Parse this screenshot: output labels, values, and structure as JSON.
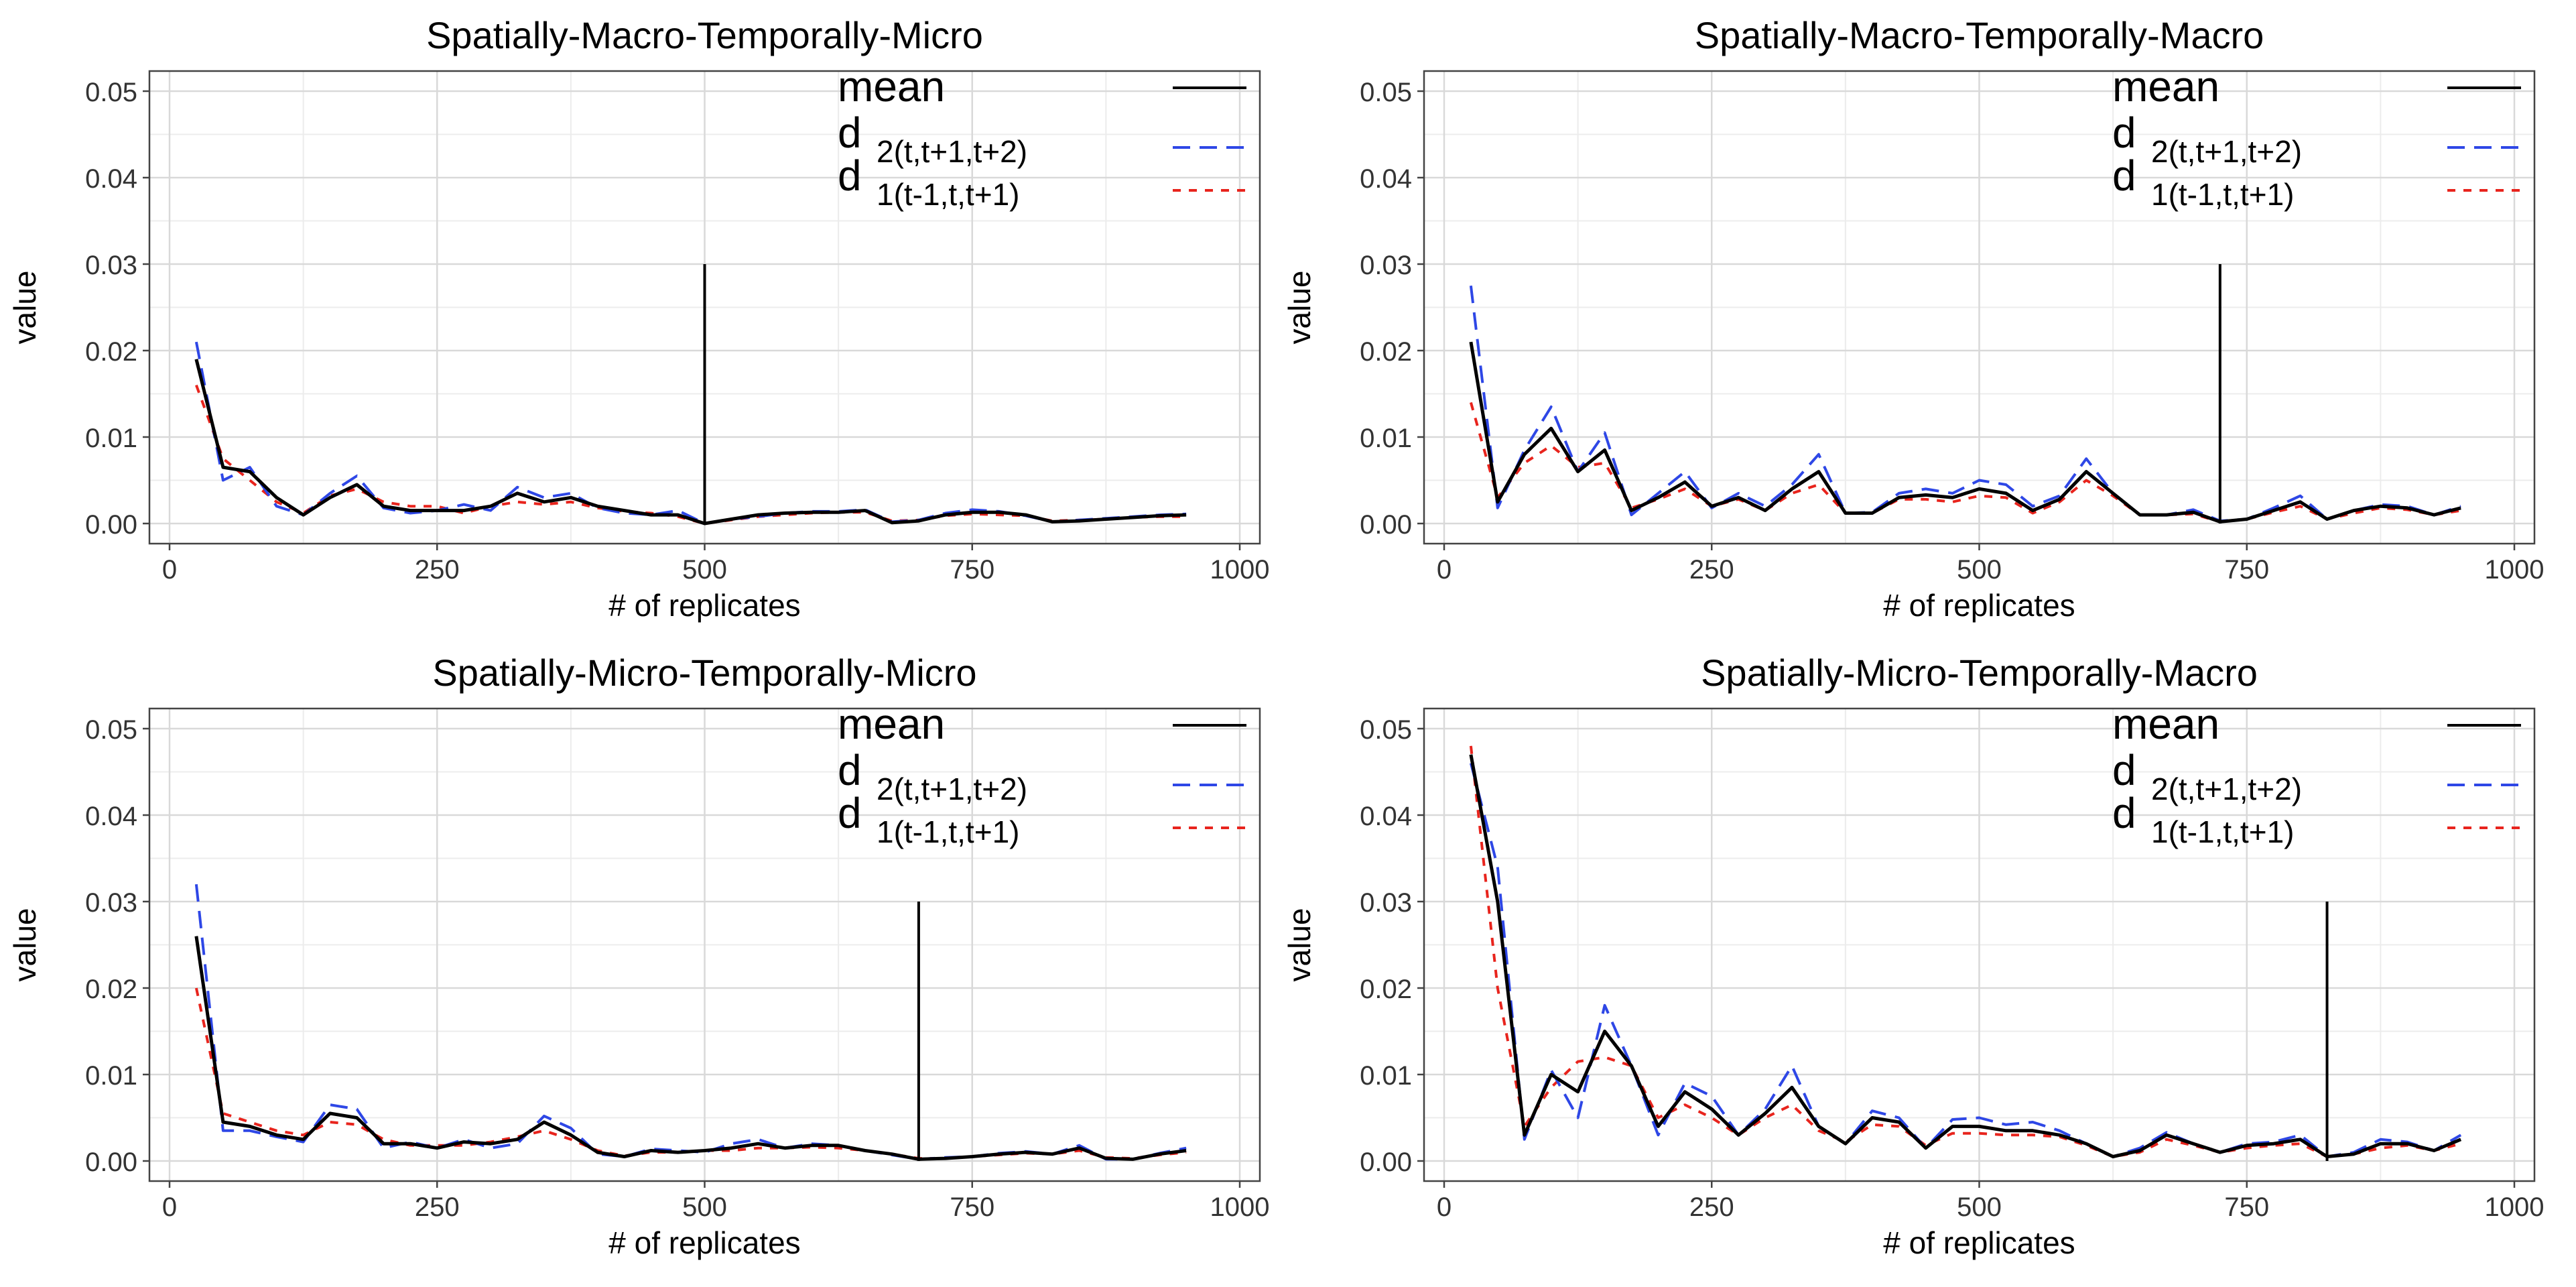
{
  "chart_data": [
    {
      "type": "line",
      "title": "Spatially-Macro-Temporally-Micro",
      "xlabel": "# of replicates",
      "ylabel": "value",
      "xlim": [
        0,
        1000
      ],
      "ylim": [
        0,
        0.05
      ],
      "xticks": [
        0,
        250,
        500,
        750,
        1000
      ],
      "xtick_labels": [
        "0",
        "250",
        "500",
        "750",
        "1000"
      ],
      "yticks": [
        0,
        0.01,
        0.02,
        0.03,
        0.04,
        0.05
      ],
      "ytick_labels": [
        "0.00",
        "0.01",
        "0.02",
        "0.03",
        "0.04",
        "0.05"
      ],
      "grid": true,
      "legend_position": "top-right",
      "x": [
        25,
        50,
        75,
        100,
        125,
        150,
        175,
        200,
        225,
        250,
        275,
        300,
        325,
        350,
        375,
        400,
        425,
        450,
        475,
        500,
        525,
        550,
        575,
        600,
        625,
        650,
        675,
        700,
        725,
        750,
        775,
        800,
        825,
        850,
        875,
        900,
        925,
        950
      ],
      "series": [
        {
          "name": "mean",
          "style": "solid",
          "color": "#000000",
          "values": [
            0.019,
            0.0065,
            0.006,
            0.003,
            0.001,
            0.003,
            0.0045,
            0.002,
            0.0015,
            0.0015,
            0.0015,
            0.002,
            0.0035,
            0.0025,
            0.003,
            0.002,
            0.0015,
            0.001,
            0.001,
            0.0,
            0.0005,
            0.001,
            0.0012,
            0.0013,
            0.0013,
            0.0015,
            0.0001,
            0.0003,
            0.001,
            0.0013,
            0.0013,
            0.001,
            0.0002,
            0.0003,
            0.0005,
            0.0007,
            0.0009,
            0.001
          ]
        },
        {
          "name": "d 2(t,t+1,t+2)",
          "style": "longdash",
          "color": "#2e47e6",
          "values": [
            0.021,
            0.005,
            0.0065,
            0.002,
            0.001,
            0.0035,
            0.0055,
            0.0018,
            0.0012,
            0.0015,
            0.0022,
            0.0015,
            0.0042,
            0.003,
            0.0035,
            0.0018,
            0.0012,
            0.001,
            0.0015,
            0.0,
            0.0005,
            0.0008,
            0.0012,
            0.0014,
            0.0014,
            0.0016,
            0.0002,
            0.0004,
            0.0012,
            0.0016,
            0.0014,
            0.0009,
            0.0002,
            0.0004,
            0.0006,
            0.0008,
            0.001,
            0.0011
          ]
        },
        {
          "name": "d 1(t-1,t,t+1)",
          "style": "dashed",
          "color": "#e8241d",
          "values": [
            0.016,
            0.0075,
            0.005,
            0.0025,
            0.0012,
            0.0032,
            0.004,
            0.0025,
            0.002,
            0.002,
            0.0012,
            0.002,
            0.0025,
            0.0022,
            0.0025,
            0.0018,
            0.0014,
            0.0012,
            0.0008,
            0.0,
            0.0004,
            0.0008,
            0.001,
            0.0012,
            0.0013,
            0.0013,
            0.0003,
            0.0004,
            0.0009,
            0.0011,
            0.001,
            0.0009,
            0.0003,
            0.0004,
            0.0005,
            0.0007,
            0.0008,
            0.0008
          ]
        }
      ],
      "annotations": [
        {
          "type": "vline",
          "x": 500,
          "y_from": 0,
          "y_to": 0.03
        }
      ],
      "legend_entries": [
        {
          "label": "mean",
          "subscript": ""
        },
        {
          "label": "d",
          "subscript": "2(t,t+1,t+2)"
        },
        {
          "label": "d",
          "subscript": "1(t-1,t,t+1)"
        }
      ]
    },
    {
      "type": "line",
      "title": "Spatially-Macro-Temporally-Macro",
      "xlabel": "# of replicates",
      "ylabel": "value",
      "xlim": [
        0,
        1000
      ],
      "ylim": [
        0,
        0.05
      ],
      "xticks": [
        0,
        250,
        500,
        750,
        1000
      ],
      "xtick_labels": [
        "0",
        "250",
        "500",
        "750",
        "1000"
      ],
      "yticks": [
        0,
        0.01,
        0.02,
        0.03,
        0.04,
        0.05
      ],
      "ytick_labels": [
        "0.00",
        "0.01",
        "0.02",
        "0.03",
        "0.04",
        "0.05"
      ],
      "grid": true,
      "legend_position": "top-right",
      "x": [
        25,
        50,
        75,
        100,
        125,
        150,
        175,
        200,
        225,
        250,
        275,
        300,
        325,
        350,
        375,
        400,
        425,
        450,
        475,
        500,
        525,
        550,
        575,
        600,
        625,
        650,
        675,
        700,
        725,
        750,
        775,
        800,
        825,
        850,
        875,
        900,
        925,
        950
      ],
      "series": [
        {
          "name": "mean",
          "style": "solid",
          "color": "#000000",
          "values": [
            0.021,
            0.0025,
            0.008,
            0.011,
            0.006,
            0.0085,
            0.0015,
            0.003,
            0.0048,
            0.002,
            0.003,
            0.0015,
            0.004,
            0.006,
            0.0012,
            0.0012,
            0.003,
            0.0033,
            0.003,
            0.004,
            0.0035,
            0.0015,
            0.0028,
            0.006,
            0.0035,
            0.001,
            0.001,
            0.0013,
            0.0002,
            0.0005,
            0.0015,
            0.0025,
            0.0005,
            0.0015,
            0.002,
            0.0018,
            0.001,
            0.0018
          ]
        },
        {
          "name": "d 2(t,t+1,t+2)",
          "style": "longdash",
          "color": "#2e47e6",
          "values": [
            0.0275,
            0.0018,
            0.0085,
            0.0135,
            0.006,
            0.0105,
            0.001,
            0.0035,
            0.006,
            0.0018,
            0.0035,
            0.002,
            0.0045,
            0.008,
            0.0012,
            0.0013,
            0.0035,
            0.004,
            0.0035,
            0.005,
            0.0045,
            0.002,
            0.0032,
            0.0075,
            0.0035,
            0.001,
            0.001,
            0.0016,
            0.0003,
            0.0005,
            0.0018,
            0.0032,
            0.0005,
            0.0015,
            0.0022,
            0.002,
            0.001,
            0.002
          ]
        },
        {
          "name": "d 1(t-1,t,t+1)",
          "style": "dashed",
          "color": "#e8241d",
          "values": [
            0.014,
            0.003,
            0.007,
            0.009,
            0.0065,
            0.007,
            0.0018,
            0.0028,
            0.004,
            0.002,
            0.0028,
            0.0015,
            0.0035,
            0.0045,
            0.0012,
            0.0012,
            0.0028,
            0.0028,
            0.0025,
            0.0032,
            0.003,
            0.0012,
            0.0025,
            0.005,
            0.0032,
            0.001,
            0.001,
            0.0011,
            0.0002,
            0.0005,
            0.0013,
            0.002,
            0.0005,
            0.0012,
            0.0018,
            0.0016,
            0.001,
            0.0015
          ]
        }
      ],
      "annotations": [
        {
          "type": "vline",
          "x": 725,
          "y_from": 0,
          "y_to": 0.03
        }
      ],
      "legend_entries": [
        {
          "label": "mean",
          "subscript": ""
        },
        {
          "label": "d",
          "subscript": "2(t,t+1,t+2)"
        },
        {
          "label": "d",
          "subscript": "1(t-1,t,t+1)"
        }
      ]
    },
    {
      "type": "line",
      "title": "Spatially-Micro-Temporally-Micro",
      "xlabel": "# of replicates",
      "ylabel": "value",
      "xlim": [
        0,
        1000
      ],
      "ylim": [
        0,
        0.05
      ],
      "xticks": [
        0,
        250,
        500,
        750,
        1000
      ],
      "xtick_labels": [
        "0",
        "250",
        "500",
        "750",
        "1000"
      ],
      "yticks": [
        0,
        0.01,
        0.02,
        0.03,
        0.04,
        0.05
      ],
      "ytick_labels": [
        "0.00",
        "0.01",
        "0.02",
        "0.03",
        "0.04",
        "0.05"
      ],
      "grid": true,
      "legend_position": "top-right",
      "x": [
        25,
        50,
        75,
        100,
        125,
        150,
        175,
        200,
        225,
        250,
        275,
        300,
        325,
        350,
        375,
        400,
        425,
        450,
        475,
        500,
        525,
        550,
        575,
        600,
        625,
        650,
        675,
        700,
        725,
        750,
        775,
        800,
        825,
        850,
        875,
        900,
        925,
        950
      ],
      "series": [
        {
          "name": "mean",
          "style": "solid",
          "color": "#000000",
          "values": [
            0.026,
            0.0045,
            0.004,
            0.003,
            0.0025,
            0.0055,
            0.005,
            0.002,
            0.002,
            0.0015,
            0.0022,
            0.002,
            0.0025,
            0.0045,
            0.003,
            0.001,
            0.0005,
            0.0012,
            0.001,
            0.0012,
            0.0015,
            0.002,
            0.0015,
            0.0018,
            0.0018,
            0.0012,
            0.0008,
            0.0002,
            0.0003,
            0.0005,
            0.0008,
            0.001,
            0.0008,
            0.0015,
            0.0003,
            0.0002,
            0.0008,
            0.0012
          ]
        },
        {
          "name": "d 2(t,t+1,t+2)",
          "style": "longdash",
          "color": "#2e47e6",
          "values": [
            0.032,
            0.0035,
            0.0035,
            0.0028,
            0.0022,
            0.0065,
            0.006,
            0.0015,
            0.0022,
            0.0015,
            0.0025,
            0.0015,
            0.002,
            0.0052,
            0.0038,
            0.0008,
            0.0005,
            0.0014,
            0.0012,
            0.001,
            0.002,
            0.0025,
            0.0015,
            0.002,
            0.0018,
            0.0012,
            0.0007,
            0.0002,
            0.0004,
            0.0005,
            0.0009,
            0.0011,
            0.0008,
            0.0018,
            0.0002,
            0.0002,
            0.0009,
            0.0015
          ]
        },
        {
          "name": "d 1(t-1,t,t+1)",
          "style": "dashed",
          "color": "#e8241d",
          "values": [
            0.02,
            0.0055,
            0.0045,
            0.0035,
            0.003,
            0.0045,
            0.0042,
            0.0025,
            0.0018,
            0.0018,
            0.0018,
            0.0022,
            0.0028,
            0.0035,
            0.0025,
            0.0012,
            0.0006,
            0.001,
            0.001,
            0.0012,
            0.0012,
            0.0015,
            0.0015,
            0.0016,
            0.0015,
            0.0012,
            0.0008,
            0.0003,
            0.0003,
            0.0005,
            0.0007,
            0.0009,
            0.0008,
            0.0012,
            0.0004,
            0.0003,
            0.0007,
            0.001
          ]
        }
      ],
      "annotations": [
        {
          "type": "vline",
          "x": 700,
          "y_from": 0,
          "y_to": 0.03
        }
      ],
      "legend_entries": [
        {
          "label": "mean",
          "subscript": ""
        },
        {
          "label": "d",
          "subscript": "2(t,t+1,t+2)"
        },
        {
          "label": "d",
          "subscript": "1(t-1,t,t+1)"
        }
      ]
    },
    {
      "type": "line",
      "title": "Spatially-Micro-Temporally-Macro",
      "xlabel": "# of replicates",
      "ylabel": "value",
      "xlim": [
        0,
        1000
      ],
      "ylim": [
        0,
        0.05
      ],
      "xticks": [
        0,
        250,
        500,
        750,
        1000
      ],
      "xtick_labels": [
        "0",
        "250",
        "500",
        "750",
        "1000"
      ],
      "yticks": [
        0,
        0.01,
        0.02,
        0.03,
        0.04,
        0.05
      ],
      "ytick_labels": [
        "0.00",
        "0.01",
        "0.02",
        "0.03",
        "0.04",
        "0.05"
      ],
      "grid": true,
      "legend_position": "top-right",
      "x": [
        25,
        50,
        75,
        100,
        125,
        150,
        175,
        200,
        225,
        250,
        275,
        300,
        325,
        350,
        375,
        400,
        425,
        450,
        475,
        500,
        525,
        550,
        575,
        600,
        625,
        650,
        675,
        700,
        725,
        750,
        775,
        800,
        825,
        850,
        875,
        900,
        925,
        950
      ],
      "series": [
        {
          "name": "mean",
          "style": "solid",
          "color": "#000000",
          "values": [
            0.047,
            0.03,
            0.003,
            0.01,
            0.008,
            0.015,
            0.011,
            0.004,
            0.008,
            0.006,
            0.003,
            0.0055,
            0.0085,
            0.004,
            0.002,
            0.005,
            0.0045,
            0.0015,
            0.004,
            0.004,
            0.0035,
            0.0035,
            0.003,
            0.002,
            0.0005,
            0.0012,
            0.003,
            0.002,
            0.001,
            0.0018,
            0.002,
            0.0025,
            0.0005,
            0.0008,
            0.002,
            0.002,
            0.0012,
            0.0025
          ]
        },
        {
          "name": "d 2(t,t+1,t+2)",
          "style": "longdash",
          "color": "#2e47e6",
          "values": [
            0.046,
            0.034,
            0.0025,
            0.0105,
            0.005,
            0.018,
            0.011,
            0.003,
            0.009,
            0.0075,
            0.003,
            0.006,
            0.011,
            0.004,
            0.002,
            0.0058,
            0.005,
            0.0015,
            0.0048,
            0.005,
            0.0042,
            0.0045,
            0.0035,
            0.002,
            0.0005,
            0.0015,
            0.0033,
            0.002,
            0.001,
            0.002,
            0.0022,
            0.003,
            0.0005,
            0.001,
            0.0025,
            0.0022,
            0.0012,
            0.003
          ]
        },
        {
          "name": "d 1(t-1,t,t+1)",
          "style": "dashed",
          "color": "#e8241d",
          "values": [
            0.048,
            0.02,
            0.004,
            0.0085,
            0.0115,
            0.012,
            0.011,
            0.005,
            0.0065,
            0.005,
            0.003,
            0.005,
            0.0065,
            0.0035,
            0.0022,
            0.0042,
            0.004,
            0.0018,
            0.0032,
            0.0032,
            0.003,
            0.003,
            0.0028,
            0.0018,
            0.0005,
            0.001,
            0.0025,
            0.0018,
            0.001,
            0.0015,
            0.0018,
            0.002,
            0.0005,
            0.0008,
            0.0015,
            0.0018,
            0.0012,
            0.002
          ]
        }
      ],
      "annotations": [
        {
          "type": "vline",
          "x": 825,
          "y_from": 0,
          "y_to": 0.03
        }
      ],
      "legend_entries": [
        {
          "label": "mean",
          "subscript": ""
        },
        {
          "label": "d",
          "subscript": "2(t,t+1,t+2)"
        },
        {
          "label": "d",
          "subscript": "1(t-1,t,t+1)"
        }
      ]
    }
  ]
}
